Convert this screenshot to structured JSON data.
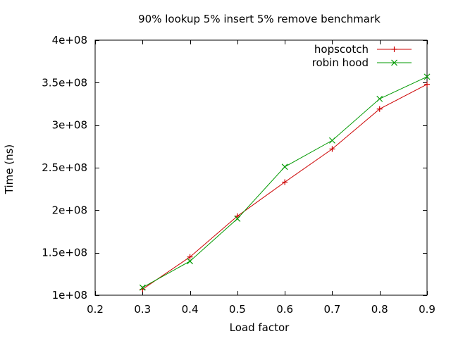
{
  "chart_data": {
    "type": "line",
    "title": "90% lookup 5% insert 5% remove benchmark",
    "xlabel": "Load factor",
    "ylabel": "Time (ns)",
    "xlim": [
      0.2,
      0.9
    ],
    "ylim": [
      100000000,
      400000000
    ],
    "x_ticks": [
      0.2,
      0.3,
      0.4,
      0.5,
      0.6,
      0.7,
      0.8,
      0.9
    ],
    "x_tick_labels": [
      "0.2",
      "0.3",
      "0.4",
      "0.5",
      "0.6",
      "0.7",
      "0.8",
      "0.9"
    ],
    "y_ticks": [
      100000000,
      150000000,
      200000000,
      250000000,
      300000000,
      350000000,
      400000000
    ],
    "y_tick_labels": [
      "1e+08",
      "1.5e+08",
      "2e+08",
      "2.5e+08",
      "3e+08",
      "3.5e+08",
      "4e+08"
    ],
    "grid": false,
    "legend_position": "top-right",
    "x": [
      0.3,
      0.4,
      0.5,
      0.6,
      0.7,
      0.8,
      0.9
    ],
    "series": [
      {
        "name": "hopscotch",
        "marker": "plus",
        "color": "#cc0000",
        "values": [
          107000000,
          145000000,
          193000000,
          233000000,
          272000000,
          319000000,
          348000000
        ]
      },
      {
        "name": "robin hood",
        "marker": "cross",
        "color": "#009900",
        "values": [
          109000000,
          140000000,
          190000000,
          251000000,
          282000000,
          331000000,
          357000000
        ]
      }
    ]
  }
}
